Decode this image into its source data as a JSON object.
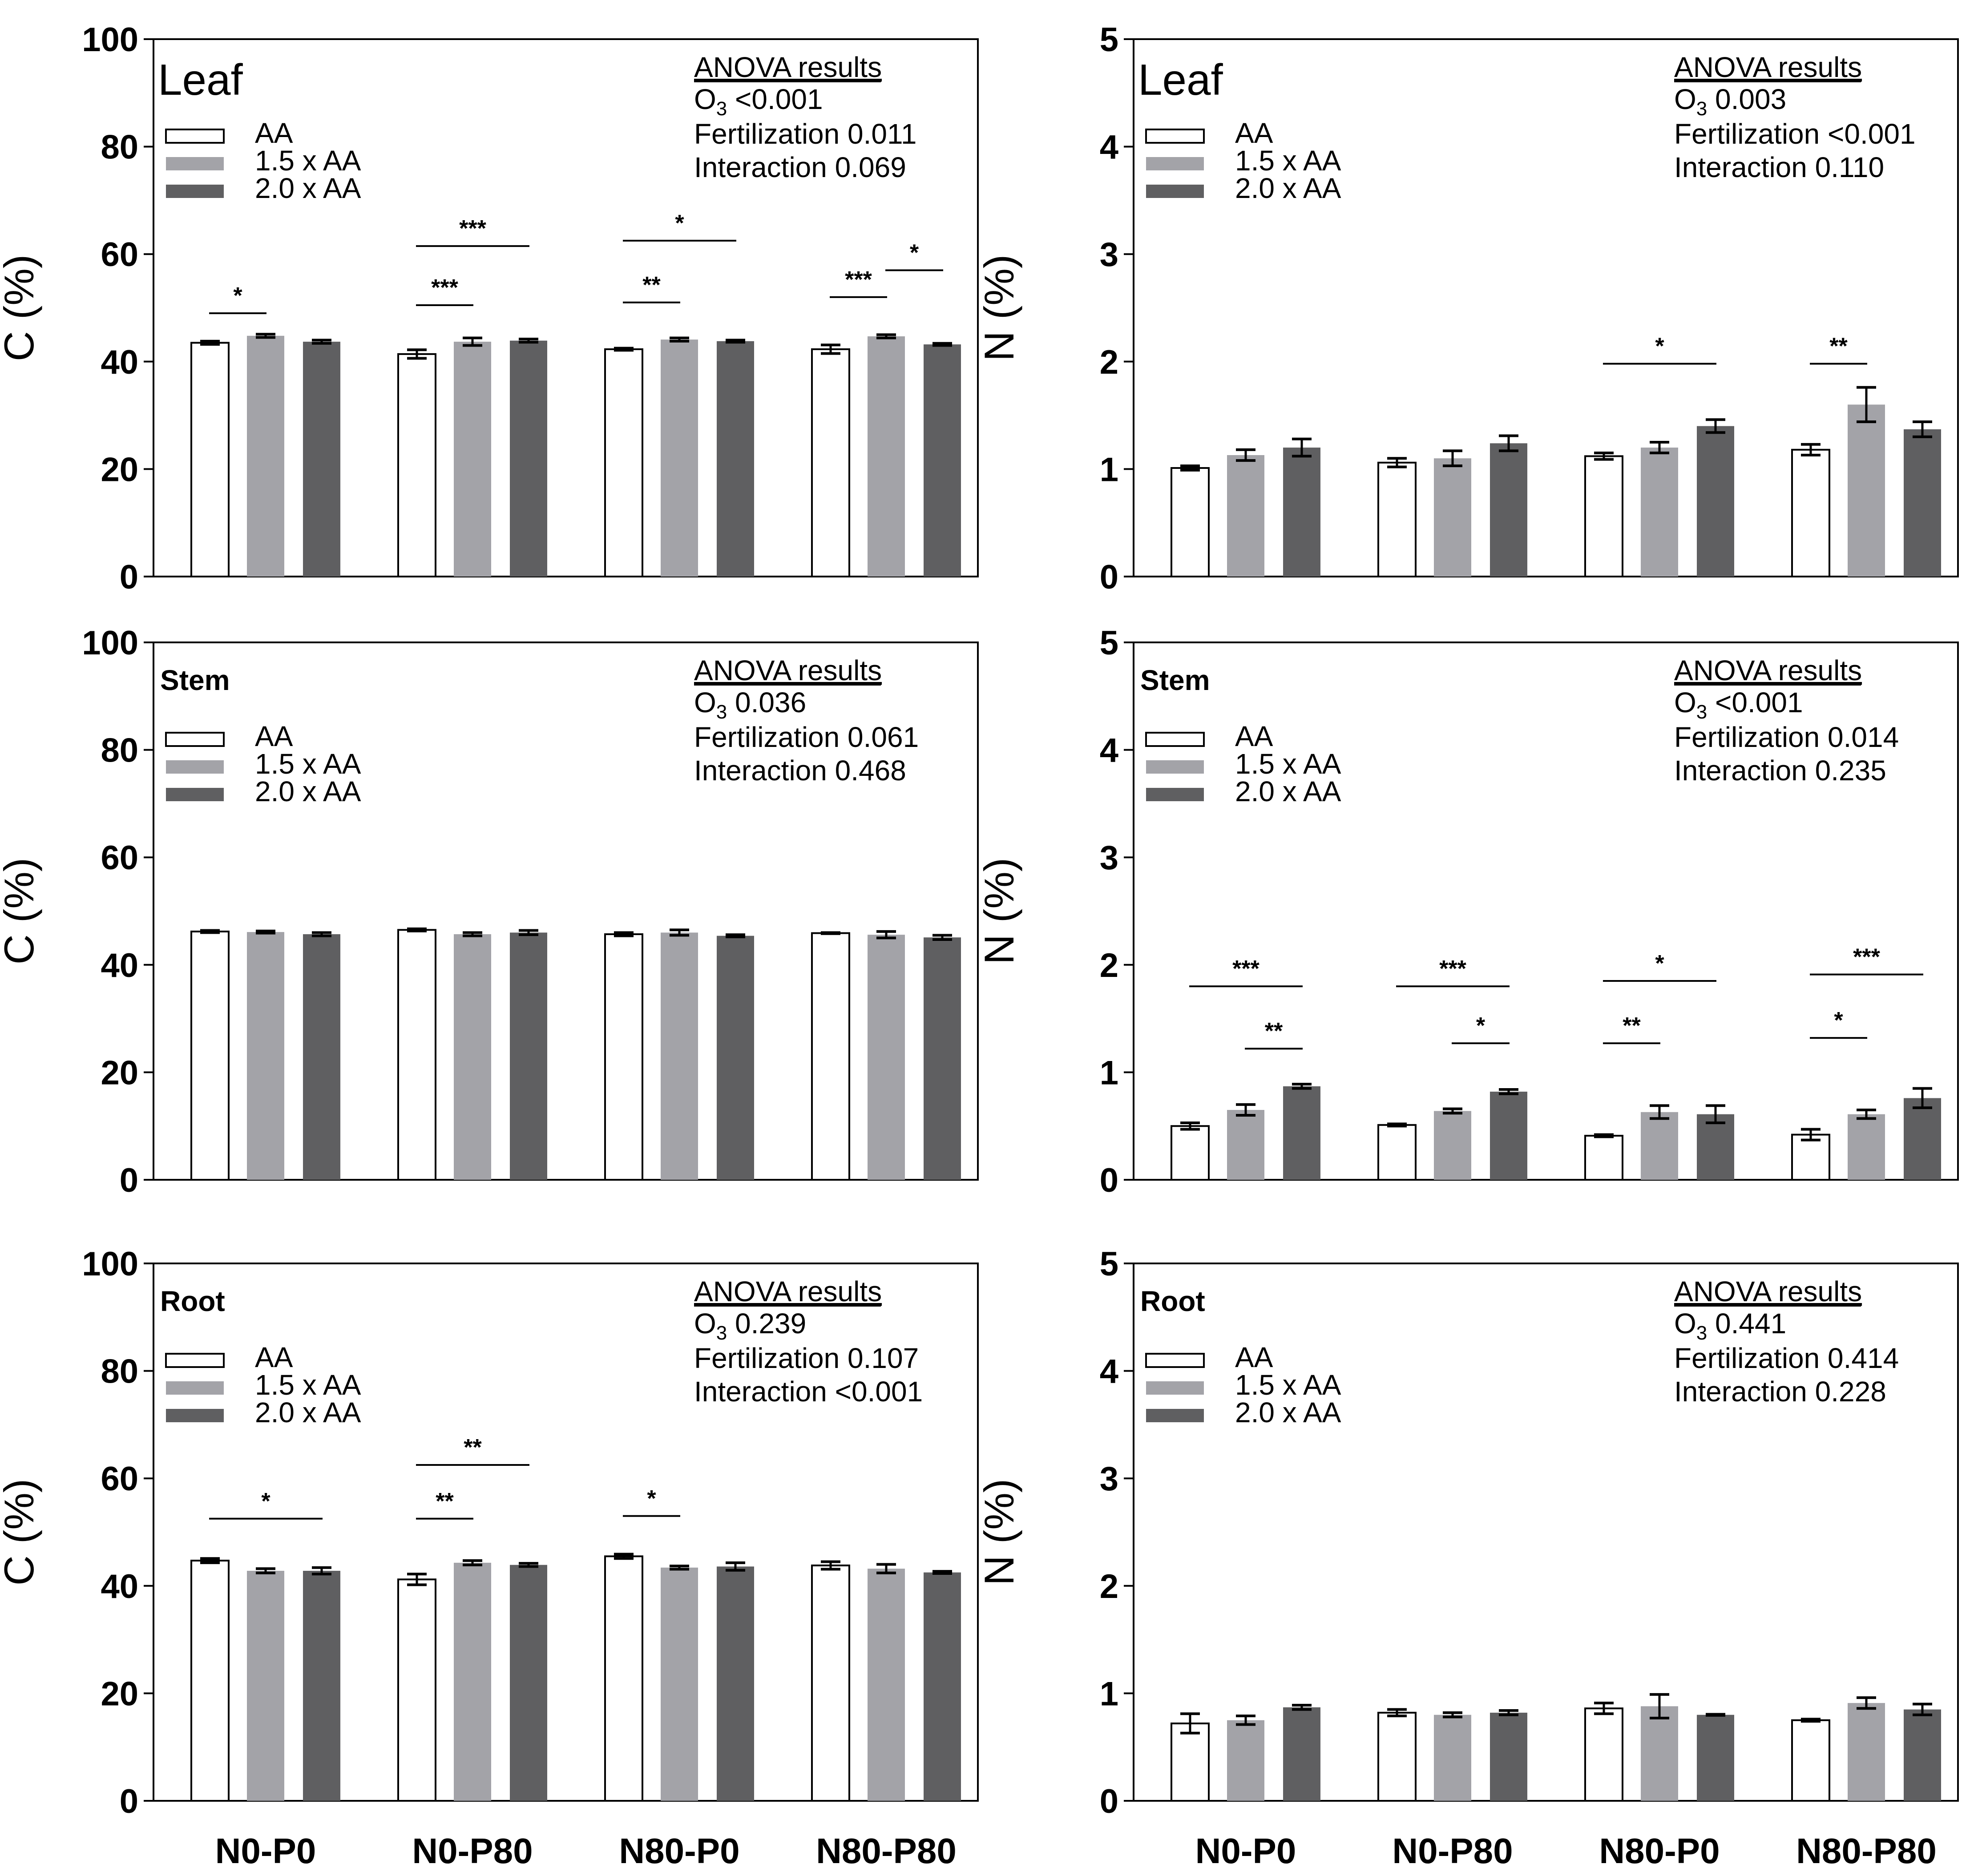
{
  "figure": {
    "categories": [
      "N0-P0",
      "N0-P80",
      "N80-P0",
      "N80-P80"
    ],
    "treatments": [
      "AA",
      "1.5 x AA",
      "2.0 x AA"
    ],
    "colors": {
      "AA": "#ffffff",
      "1.5 x AA": "#a3a3a8",
      "2.0 x AA": "#5f5f61",
      "line": "#000000"
    }
  },
  "chart_data": [
    {
      "id": "leaf-c",
      "type": "bar",
      "title": "Leaf",
      "title_weight": "normal",
      "ylabel": "C (%)",
      "xlabel": "",
      "ylim": [
        0,
        100
      ],
      "yticks": [
        0,
        20,
        40,
        60,
        80,
        100
      ],
      "categories": [
        "N0-P0",
        "N0-P80",
        "N80-P0",
        "N80-P80"
      ],
      "series": [
        {
          "name": "AA",
          "values": [
            43.5,
            41.4,
            42.3,
            42.3
          ],
          "errors": [
            0.3,
            0.8,
            0.2,
            0.8
          ]
        },
        {
          "name": "1.5 x AA",
          "values": [
            44.8,
            43.7,
            44.1,
            44.7
          ],
          "errors": [
            0.3,
            0.7,
            0.3,
            0.3
          ]
        },
        {
          "name": "2.0 x AA",
          "values": [
            43.7,
            43.9,
            43.8,
            43.2
          ],
          "errors": [
            0.3,
            0.3,
            0.2,
            0.2
          ]
        }
      ],
      "anova": {
        "heading": "ANOVA results",
        "o3_label": "O",
        "o3_sub": "3",
        "o3_value": " <0.001",
        "fertilization": "Fertilization 0.011",
        "interaction": "Interaction 0.069"
      },
      "significance": [
        {
          "category": 0,
          "from": 0,
          "to": 1,
          "level": 49,
          "label": "*"
        },
        {
          "category": 1,
          "from": 0,
          "to": 1,
          "level": 50.5,
          "label": "***"
        },
        {
          "category": 1,
          "from": 0,
          "to": 2,
          "level": 61.5,
          "label": "***"
        },
        {
          "category": 2,
          "from": 0,
          "to": 1,
          "level": 51,
          "label": "**"
        },
        {
          "category": 2,
          "from": 0,
          "to": 2,
          "level": 62.5,
          "label": "*"
        },
        {
          "category": 3,
          "from": 0,
          "to": 1,
          "level": 52,
          "label": "***"
        },
        {
          "category": 3,
          "from": 1,
          "to": 2,
          "level": 57,
          "label": "*"
        }
      ]
    },
    {
      "id": "leaf-n",
      "type": "bar",
      "title": "Leaf",
      "title_weight": "normal",
      "ylabel": "N (%)",
      "xlabel": "",
      "ylim": [
        0,
        5
      ],
      "yticks": [
        0,
        1,
        2,
        3,
        4,
        5
      ],
      "categories": [
        "N0-P0",
        "N0-P80",
        "N80-P0",
        "N80-P80"
      ],
      "series": [
        {
          "name": "AA",
          "values": [
            1.01,
            1.06,
            1.12,
            1.18
          ],
          "errors": [
            0.02,
            0.04,
            0.03,
            0.05
          ]
        },
        {
          "name": "1.5 x AA",
          "values": [
            1.13,
            1.1,
            1.2,
            1.6
          ],
          "errors": [
            0.05,
            0.07,
            0.05,
            0.16
          ]
        },
        {
          "name": "2.0 x AA",
          "values": [
            1.2,
            1.24,
            1.4,
            1.37
          ],
          "errors": [
            0.08,
            0.07,
            0.06,
            0.07
          ]
        }
      ],
      "anova": {
        "heading": "ANOVA results",
        "o3_label": "O",
        "o3_sub": "3",
        "o3_value": " 0.003",
        "fertilization": "Fertilization <0.001",
        "interaction": "Interaction 0.110"
      },
      "significance": [
        {
          "category": 2,
          "from": 0,
          "to": 2,
          "level": 1.98,
          "label": "*"
        },
        {
          "category": 3,
          "from": 0,
          "to": 1,
          "level": 1.98,
          "label": "**"
        }
      ]
    },
    {
      "id": "stem-c",
      "type": "bar",
      "title": "Stem",
      "title_weight": "bold",
      "ylabel": "C (%)",
      "xlabel": "",
      "ylim": [
        0,
        100
      ],
      "yticks": [
        0,
        20,
        40,
        60,
        80,
        100
      ],
      "categories": [
        "N0-P0",
        "N0-P80",
        "N80-P0",
        "N80-P80"
      ],
      "series": [
        {
          "name": "AA",
          "values": [
            46.2,
            46.5,
            45.7,
            45.9
          ],
          "errors": [
            0.2,
            0.2,
            0.3,
            0.1
          ]
        },
        {
          "name": "1.5 x AA",
          "values": [
            46.1,
            45.7,
            46.0,
            45.6
          ],
          "errors": [
            0.2,
            0.3,
            0.5,
            0.6
          ]
        },
        {
          "name": "2.0 x AA",
          "values": [
            45.7,
            46.0,
            45.4,
            45.1
          ],
          "errors": [
            0.3,
            0.4,
            0.2,
            0.4
          ]
        }
      ],
      "anova": {
        "heading": "ANOVA results",
        "o3_label": "O",
        "o3_sub": "3",
        "o3_value": " 0.036",
        "fertilization": "Fertilization 0.061",
        "interaction": "Interaction 0.468"
      },
      "significance": []
    },
    {
      "id": "stem-n",
      "type": "bar",
      "title": "Stem",
      "title_weight": "bold",
      "ylabel": "N (%)",
      "xlabel": "",
      "ylim": [
        0,
        5
      ],
      "yticks": [
        0,
        1,
        2,
        3,
        4,
        5
      ],
      "categories": [
        "N0-P0",
        "N0-P80",
        "N80-P0",
        "N80-P80"
      ],
      "series": [
        {
          "name": "AA",
          "values": [
            0.5,
            0.51,
            0.41,
            0.42
          ],
          "errors": [
            0.03,
            0.01,
            0.01,
            0.05
          ]
        },
        {
          "name": "1.5 x AA",
          "values": [
            0.65,
            0.64,
            0.63,
            0.61
          ],
          "errors": [
            0.05,
            0.02,
            0.06,
            0.04
          ]
        },
        {
          "name": "2.0 x AA",
          "values": [
            0.87,
            0.82,
            0.61,
            0.76
          ],
          "errors": [
            0.02,
            0.02,
            0.08,
            0.09
          ]
        }
      ],
      "anova": {
        "heading": "ANOVA results",
        "o3_label": "O",
        "o3_sub": "3",
        "o3_value": " <0.001",
        "fertilization": "Fertilization 0.014",
        "interaction": "Interaction 0.235"
      },
      "significance": [
        {
          "category": 0,
          "from": 0,
          "to": 2,
          "level": 1.8,
          "label": "***"
        },
        {
          "category": 0,
          "from": 1,
          "to": 2,
          "level": 1.22,
          "label": "**"
        },
        {
          "category": 1,
          "from": 0,
          "to": 2,
          "level": 1.8,
          "label": "***"
        },
        {
          "category": 1,
          "from": 1,
          "to": 2,
          "level": 1.27,
          "label": "*"
        },
        {
          "category": 2,
          "from": 0,
          "to": 2,
          "level": 1.85,
          "label": "*"
        },
        {
          "category": 2,
          "from": 0,
          "to": 1,
          "level": 1.27,
          "label": "**"
        },
        {
          "category": 3,
          "from": 0,
          "to": 2,
          "level": 1.91,
          "label": "***"
        },
        {
          "category": 3,
          "from": 0,
          "to": 1,
          "level": 1.32,
          "label": "*"
        }
      ]
    },
    {
      "id": "root-c",
      "type": "bar",
      "title": "Root",
      "title_weight": "bold",
      "ylabel": "C (%)",
      "xlabel": "",
      "ylim": [
        0,
        100
      ],
      "yticks": [
        0,
        20,
        40,
        60,
        80,
        100
      ],
      "categories": [
        "N0-P0",
        "N0-P80",
        "N80-P0",
        "N80-P80"
      ],
      "series": [
        {
          "name": "AA",
          "values": [
            44.7,
            41.2,
            45.5,
            43.8
          ],
          "errors": [
            0.4,
            1.0,
            0.4,
            0.7
          ]
        },
        {
          "name": "1.5 x AA",
          "values": [
            42.8,
            44.3,
            43.4,
            43.2
          ],
          "errors": [
            0.4,
            0.4,
            0.3,
            0.8
          ]
        },
        {
          "name": "2.0 x AA",
          "values": [
            42.8,
            43.9,
            43.6,
            42.5
          ],
          "errors": [
            0.6,
            0.3,
            0.7,
            0.2
          ]
        }
      ],
      "anova": {
        "heading": "ANOVA results",
        "o3_label": "O",
        "o3_sub": "3",
        "o3_value": " 0.239",
        "fertilization": "Fertilization 0.107",
        "interaction": "Interaction <0.001"
      },
      "significance": [
        {
          "category": 0,
          "from": 0,
          "to": 2,
          "level": 52.5,
          "label": "*"
        },
        {
          "category": 1,
          "from": 0,
          "to": 1,
          "level": 52.5,
          "label": "**"
        },
        {
          "category": 1,
          "from": 0,
          "to": 2,
          "level": 62.5,
          "label": "**"
        },
        {
          "category": 2,
          "from": 0,
          "to": 1,
          "level": 53,
          "label": "*"
        }
      ]
    },
    {
      "id": "root-n",
      "type": "bar",
      "title": "Root",
      "title_weight": "bold",
      "ylabel": "N (%)",
      "xlabel": "",
      "ylim": [
        0,
        5
      ],
      "yticks": [
        0,
        1,
        2,
        3,
        4,
        5
      ],
      "categories": [
        "N0-P0",
        "N0-P80",
        "N80-P0",
        "N80-P80"
      ],
      "series": [
        {
          "name": "AA",
          "values": [
            0.72,
            0.82,
            0.86,
            0.75
          ],
          "errors": [
            0.09,
            0.03,
            0.05,
            0.01
          ]
        },
        {
          "name": "1.5 x AA",
          "values": [
            0.75,
            0.8,
            0.88,
            0.91
          ],
          "errors": [
            0.04,
            0.02,
            0.11,
            0.05
          ]
        },
        {
          "name": "2.0 x AA",
          "values": [
            0.87,
            0.82,
            0.8,
            0.85
          ],
          "errors": [
            0.02,
            0.02,
            0.005,
            0.05
          ]
        }
      ],
      "anova": {
        "heading": "ANOVA results",
        "o3_label": "O",
        "o3_sub": "3",
        "o3_value": " 0.441",
        "fertilization": "Fertilization 0.414",
        "interaction": "Interaction 0.228"
      },
      "significance": []
    }
  ]
}
